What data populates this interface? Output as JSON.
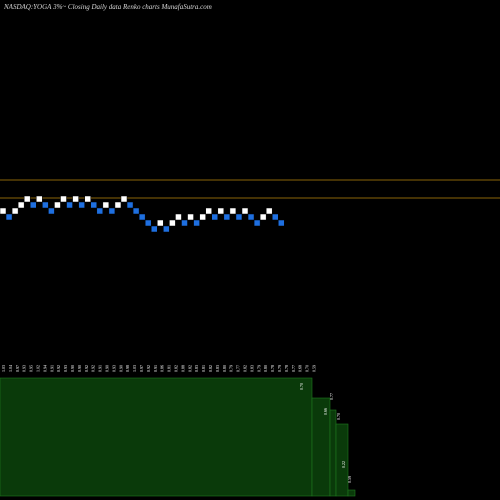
{
  "header": {
    "title": "NASDAQ:YOGA 3%~  Closing Daily data  Renko  charts MunafaSutra.com"
  },
  "colors": {
    "background": "#000000",
    "up_brick": "#ffffff",
    "down_brick": "#1e6fe0",
    "reference_line": "#b8860b",
    "volume_fill": "#0a3a0a",
    "volume_edge": "#1f7a1f"
  },
  "chart_data": {
    "type": "renko",
    "reference_lines": [
      "upper",
      "lower"
    ],
    "bricks": [
      "up",
      "down",
      "up",
      "up",
      "up",
      "down",
      "up",
      "down",
      "down",
      "up",
      "up",
      "down",
      "up",
      "down",
      "up",
      "down",
      "down",
      "up",
      "down",
      "up",
      "up",
      "down",
      "down",
      "down",
      "down",
      "down",
      "up",
      "down",
      "up",
      "up",
      "down",
      "up",
      "down",
      "up",
      "up",
      "down",
      "up",
      "down",
      "up",
      "down",
      "up",
      "down",
      "down",
      "up",
      "up",
      "down",
      "down"
    ],
    "bottom_panel_labels": [
      "1.03",
      "1.04",
      "0.97",
      "0.93",
      "0.95",
      "1.02",
      "0.94",
      "0.91",
      "0.92",
      "0.93",
      "0.90",
      "0.90",
      "0.92",
      "0.92",
      "0.91",
      "0.90",
      "0.93",
      "0.90",
      "0.98",
      "1.03",
      "0.97",
      "0.92",
      "0.91",
      "0.86",
      "0.81",
      "0.82",
      "0.88",
      "0.82",
      "0.83",
      "0.81",
      "0.82",
      "0.83",
      "0.80",
      "0.79",
      "0.77",
      "0.82",
      "0.83",
      "0.79",
      "0.80",
      "0.78",
      "0.79",
      "0.78",
      "0.77",
      "0.68",
      "0.70",
      "0.59"
    ],
    "volume_labels": [
      "0.70",
      "0.77",
      "0.66",
      "0.70",
      "0.22",
      "0.59"
    ]
  }
}
